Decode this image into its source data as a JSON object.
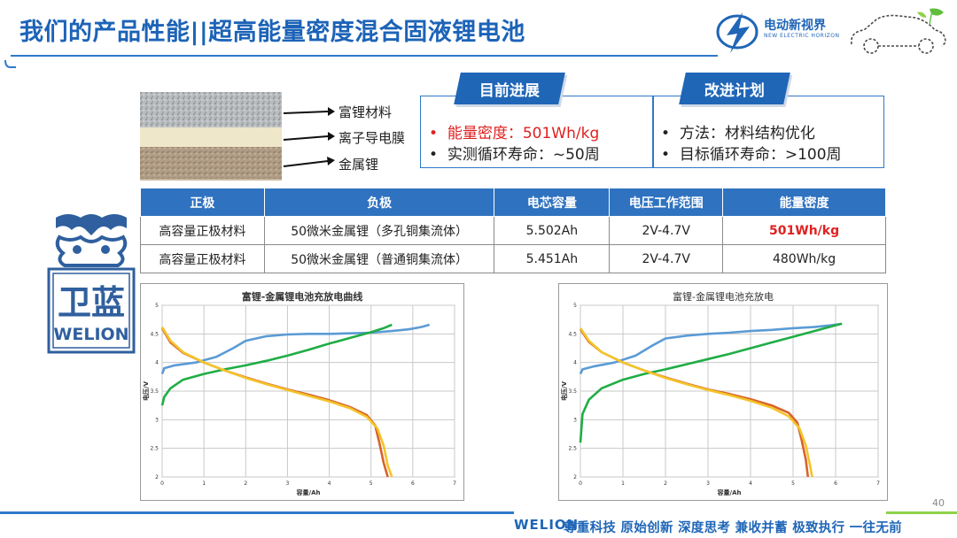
{
  "title": "我们的产品性能||超高能量密度混合固液锂电池",
  "brand": {
    "name_cn": "电动新视界",
    "name_en": "NEW ELECTRIC HORIZON"
  },
  "layers": {
    "labels": [
      "富锂材料",
      "离子导电膜",
      "金属锂"
    ]
  },
  "progress": {
    "badge": "目前进展",
    "items": [
      "能量密度：501Wh/kg",
      "实测循环寿命：~50周"
    ]
  },
  "plan": {
    "badge": "改进计划",
    "items": [
      "方法：材料结构优化",
      "目标循环寿命：>100周"
    ]
  },
  "table": {
    "headers": [
      "正极",
      "负极",
      "电芯容量",
      "电压工作范围",
      "能量密度"
    ],
    "rows": [
      [
        "高容量正极材料",
        "50微米金属锂（多孔铜集流体）",
        "5.502Ah",
        "2V-4.7V",
        "501Wh/kg"
      ],
      [
        "高容量正极材料",
        "50微米金属锂（普通铜集流体）",
        "5.451Ah",
        "2V-4.7V",
        "480Wh/kg"
      ]
    ]
  },
  "seal": {
    "text_cn": "卫蓝",
    "text_en": "WELION"
  },
  "chart_data": [
    {
      "type": "line",
      "title": "富锂-金属锂电池充放电曲线",
      "xlabel": "容量/Ah",
      "ylabel": "电压/V",
      "xlim": [
        0,
        7
      ],
      "ylim": [
        2,
        5
      ],
      "xticks": [
        "0",
        "1",
        "2",
        "3",
        "4",
        "5",
        "6",
        "7"
      ],
      "yticks": [
        "2",
        "2.5",
        "3",
        "3.5",
        "4",
        "4.5",
        "5"
      ],
      "series": [
        {
          "color": "#5b9bd5",
          "x": [
            0,
            0.05,
            0.3,
            0.8,
            1.3,
            1.7,
            2.0,
            2.5,
            3.0,
            3.5,
            4.0,
            4.5,
            5.0,
            5.5,
            5.9,
            6.2,
            6.4
          ],
          "y": [
            3.8,
            3.9,
            3.95,
            4.0,
            4.1,
            4.25,
            4.38,
            4.46,
            4.49,
            4.5,
            4.5,
            4.51,
            4.52,
            4.55,
            4.58,
            4.62,
            4.66
          ]
        },
        {
          "color": "#1fad45",
          "x": [
            0,
            0.05,
            0.2,
            0.5,
            1.0,
            1.5,
            2.0,
            2.5,
            3.0,
            3.5,
            4.0,
            4.5,
            5.0,
            5.3,
            5.5
          ],
          "y": [
            3.25,
            3.4,
            3.55,
            3.7,
            3.8,
            3.88,
            3.95,
            4.03,
            4.12,
            4.22,
            4.33,
            4.43,
            4.53,
            4.6,
            4.66
          ]
        },
        {
          "color": "#d9622b",
          "x": [
            0,
            0.2,
            0.5,
            1.0,
            1.5,
            2.0,
            2.5,
            3.0,
            3.5,
            4.0,
            4.5,
            4.9,
            5.1,
            5.2,
            5.3,
            5.4
          ],
          "y": [
            4.6,
            4.35,
            4.17,
            4.0,
            3.86,
            3.74,
            3.63,
            3.53,
            3.44,
            3.34,
            3.22,
            3.08,
            2.9,
            2.6,
            2.25,
            2.0
          ]
        },
        {
          "color": "#f3c42a",
          "x": [
            0,
            0.2,
            0.5,
            1.0,
            1.5,
            2.0,
            2.5,
            3.0,
            3.5,
            4.0,
            4.5,
            4.9,
            5.15,
            5.3,
            5.4,
            5.5
          ],
          "y": [
            4.62,
            4.38,
            4.18,
            4.0,
            3.86,
            3.73,
            3.62,
            3.52,
            3.42,
            3.32,
            3.2,
            3.05,
            2.85,
            2.55,
            2.2,
            2.0
          ]
        }
      ]
    },
    {
      "type": "line",
      "title": "富锂-金属锂电池充放电",
      "xlabel": "容量/Ah",
      "ylabel": "电压/V",
      "xlim": [
        0,
        7
      ],
      "ylim": [
        2,
        5
      ],
      "xticks": [
        "0",
        "1",
        "2",
        "3",
        "4",
        "5",
        "6",
        "7"
      ],
      "yticks": [
        "2",
        "2.5",
        "3",
        "3.5",
        "4",
        "4.5",
        "5"
      ],
      "series": [
        {
          "color": "#5b9bd5",
          "x": [
            0,
            0.05,
            0.3,
            0.8,
            1.3,
            1.7,
            2.0,
            2.5,
            3.0,
            3.5,
            4.0,
            4.5,
            5.0,
            5.5,
            5.9,
            6.1
          ],
          "y": [
            3.8,
            3.88,
            3.93,
            4.0,
            4.12,
            4.3,
            4.42,
            4.47,
            4.5,
            4.52,
            4.55,
            4.57,
            4.6,
            4.62,
            4.65,
            4.67
          ]
        },
        {
          "color": "#1fad45",
          "x": [
            0,
            0.05,
            0.2,
            0.5,
            1.0,
            1.5,
            2.0,
            2.5,
            3.0,
            3.5,
            4.0,
            4.5,
            5.0,
            5.5,
            6.0,
            6.15
          ],
          "y": [
            2.6,
            3.1,
            3.35,
            3.55,
            3.7,
            3.8,
            3.88,
            3.97,
            4.06,
            4.15,
            4.25,
            4.35,
            4.45,
            4.55,
            4.65,
            4.68
          ]
        },
        {
          "color": "#d9622b",
          "x": [
            0,
            0.2,
            0.5,
            1.0,
            1.5,
            2.0,
            2.5,
            3.0,
            3.5,
            4.0,
            4.5,
            4.9,
            5.1,
            5.2,
            5.3,
            5.35
          ],
          "y": [
            4.58,
            4.36,
            4.18,
            4.0,
            3.86,
            3.74,
            3.63,
            3.53,
            3.45,
            3.36,
            3.25,
            3.12,
            2.95,
            2.65,
            2.3,
            2.0
          ]
        },
        {
          "color": "#f3c42a",
          "x": [
            0,
            0.2,
            0.5,
            1.0,
            1.5,
            2.0,
            2.5,
            3.0,
            3.5,
            4.0,
            4.5,
            4.9,
            5.15,
            5.3,
            5.4,
            5.45
          ],
          "y": [
            4.6,
            4.38,
            4.18,
            4.0,
            3.86,
            3.73,
            3.62,
            3.52,
            3.43,
            3.33,
            3.21,
            3.06,
            2.85,
            2.55,
            2.2,
            2.0
          ]
        }
      ]
    }
  ],
  "page_number": "40",
  "footer": {
    "logo": "WELION",
    "slogan": "尊重科技  原始创新  深度思考  兼收并蓄  极致执行  一往无前"
  }
}
